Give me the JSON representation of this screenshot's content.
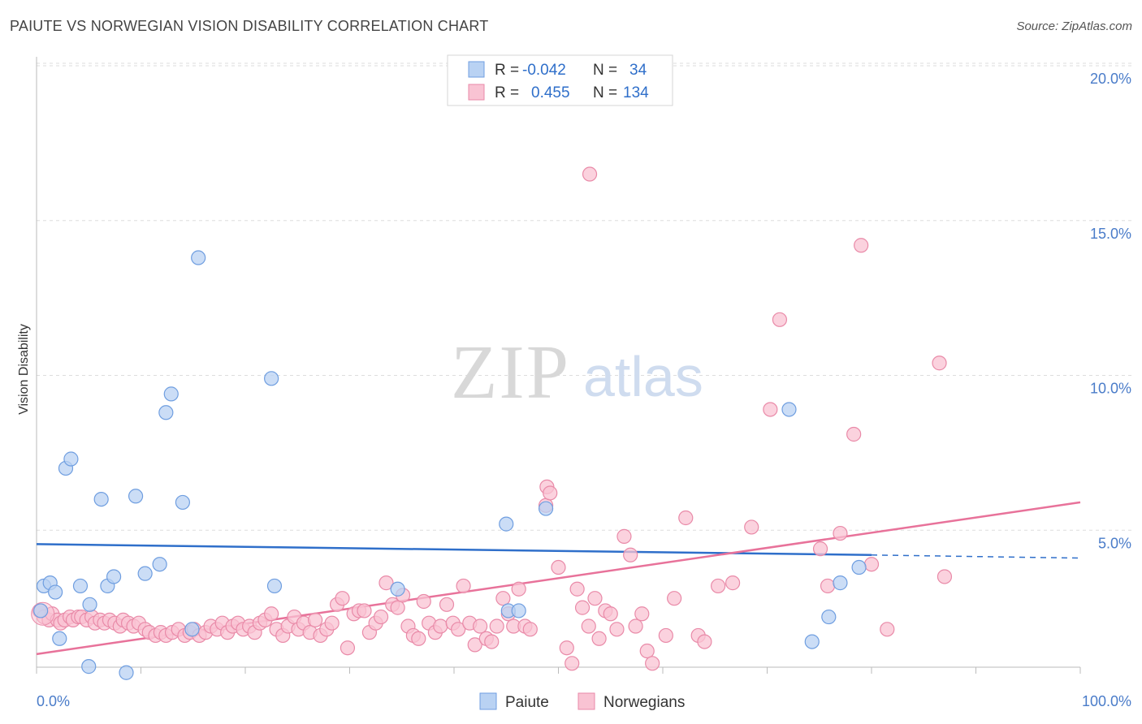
{
  "title": "PAIUTE VS NORWEGIAN VISION DISABILITY CORRELATION CHART",
  "source": "Source: ZipAtlas.com",
  "watermark": {
    "zip": "ZIP",
    "atlas": "atlas"
  },
  "colors": {
    "blue_fill": "#b9d2f3",
    "blue_stroke": "#6f9ee0",
    "blue_line": "#2f6fca",
    "pink_fill": "#f9c3d3",
    "pink_stroke": "#e98aa8",
    "pink_line": "#e8729a",
    "tick_text": "#4a7cc9",
    "grid": "#dddddd"
  },
  "legend": {
    "rows": [
      {
        "r_label": "R =",
        "r_value": "-0.042",
        "n_label": "N =",
        "n_value": "34"
      },
      {
        "r_label": "R =",
        "r_value": "0.455",
        "n_label": "N =",
        "n_value": "134"
      }
    ]
  },
  "bottom_legend": [
    "Paiute",
    "Norwegians"
  ],
  "chart_data": {
    "type": "scatter",
    "title": "PAIUTE VS NORWEGIAN VISION DISABILITY CORRELATION CHART",
    "xlabel": "",
    "ylabel": "Vision Disability",
    "xlim": [
      0,
      100
    ],
    "ylim": [
      0,
      20.5
    ],
    "x_tick_labels": [
      "0.0%",
      "100.0%"
    ],
    "y_ticks": [
      5,
      10,
      15,
      20
    ],
    "y_tick_labels": [
      "5.0%",
      "10.0%",
      "15.0%",
      "20.0%"
    ],
    "grid": true,
    "series": [
      {
        "name": "Paiute",
        "points": [
          [
            0.4,
            2.4
          ],
          [
            0.7,
            3.2
          ],
          [
            1.3,
            3.3
          ],
          [
            1.8,
            3.0
          ],
          [
            2.2,
            1.5
          ],
          [
            2.8,
            7.0
          ],
          [
            3.3,
            7.3
          ],
          [
            4.2,
            3.2
          ],
          [
            5.1,
            2.6
          ],
          [
            5.0,
            0.6
          ],
          [
            6.2,
            6.0
          ],
          [
            6.8,
            3.2
          ],
          [
            7.4,
            3.5
          ],
          [
            8.6,
            0.4
          ],
          [
            9.5,
            6.1
          ],
          [
            10.4,
            3.6
          ],
          [
            11.8,
            3.9
          ],
          [
            12.4,
            8.8
          ],
          [
            12.9,
            9.4
          ],
          [
            14.0,
            5.9
          ],
          [
            14.9,
            1.8
          ],
          [
            15.5,
            13.8
          ],
          [
            22.5,
            9.9
          ],
          [
            22.8,
            3.2
          ],
          [
            34.6,
            3.1
          ],
          [
            45.0,
            5.2
          ],
          [
            45.2,
            2.4
          ],
          [
            46.2,
            2.4
          ],
          [
            48.8,
            5.7
          ],
          [
            72.1,
            8.9
          ],
          [
            74.3,
            1.4
          ],
          [
            75.9,
            2.2
          ],
          [
            77.0,
            3.3
          ],
          [
            78.8,
            3.8
          ]
        ],
        "trend": {
          "x": [
            0,
            80
          ],
          "y": [
            4.55,
            4.2
          ],
          "dashed_to": [
            100,
            4.1
          ]
        }
      },
      {
        "name": "Norwegians",
        "points": [
          [
            0.3,
            2.4
          ],
          [
            0.7,
            2.2
          ],
          [
            1.2,
            2.1
          ],
          [
            1.5,
            2.3
          ],
          [
            2.0,
            2.1
          ],
          [
            2.3,
            2.0
          ],
          [
            2.7,
            2.1
          ],
          [
            3.2,
            2.2
          ],
          [
            3.5,
            2.1
          ],
          [
            4.0,
            2.2
          ],
          [
            4.3,
            2.2
          ],
          [
            4.8,
            2.1
          ],
          [
            5.3,
            2.2
          ],
          [
            5.6,
            2.0
          ],
          [
            6.1,
            2.1
          ],
          [
            6.5,
            2.0
          ],
          [
            7.0,
            2.1
          ],
          [
            7.5,
            2.0
          ],
          [
            8.0,
            1.9
          ],
          [
            8.3,
            2.1
          ],
          [
            8.8,
            2.0
          ],
          [
            9.3,
            1.9
          ],
          [
            9.8,
            2.0
          ],
          [
            10.4,
            1.8
          ],
          [
            10.8,
            1.7
          ],
          [
            11.4,
            1.6
          ],
          [
            11.9,
            1.7
          ],
          [
            12.4,
            1.6
          ],
          [
            13.0,
            1.7
          ],
          [
            13.6,
            1.8
          ],
          [
            14.2,
            1.6
          ],
          [
            14.7,
            1.7
          ],
          [
            15.1,
            1.8
          ],
          [
            15.6,
            1.6
          ],
          [
            16.2,
            1.7
          ],
          [
            16.7,
            1.9
          ],
          [
            17.3,
            1.8
          ],
          [
            17.8,
            2.0
          ],
          [
            18.3,
            1.7
          ],
          [
            18.8,
            1.9
          ],
          [
            19.3,
            2.0
          ],
          [
            19.8,
            1.8
          ],
          [
            20.4,
            1.9
          ],
          [
            20.9,
            1.7
          ],
          [
            21.4,
            2.0
          ],
          [
            21.9,
            2.1
          ],
          [
            22.5,
            2.3
          ],
          [
            23.0,
            1.8
          ],
          [
            23.6,
            1.6
          ],
          [
            24.1,
            1.9
          ],
          [
            24.7,
            2.2
          ],
          [
            25.1,
            1.8
          ],
          [
            25.6,
            2.0
          ],
          [
            26.2,
            1.7
          ],
          [
            26.7,
            2.1
          ],
          [
            27.2,
            1.6
          ],
          [
            27.8,
            1.8
          ],
          [
            28.3,
            2.0
          ],
          [
            28.8,
            2.6
          ],
          [
            29.3,
            2.8
          ],
          [
            29.8,
            1.2
          ],
          [
            30.4,
            2.3
          ],
          [
            30.9,
            2.4
          ],
          [
            31.4,
            2.4
          ],
          [
            31.9,
            1.7
          ],
          [
            32.5,
            2.0
          ],
          [
            33.0,
            2.2
          ],
          [
            33.5,
            3.3
          ],
          [
            34.1,
            2.6
          ],
          [
            34.6,
            2.5
          ],
          [
            35.1,
            2.9
          ],
          [
            35.6,
            1.9
          ],
          [
            36.1,
            1.6
          ],
          [
            36.6,
            1.5
          ],
          [
            37.1,
            2.7
          ],
          [
            37.6,
            2.0
          ],
          [
            38.2,
            1.7
          ],
          [
            38.7,
            1.9
          ],
          [
            39.3,
            2.6
          ],
          [
            39.9,
            2.0
          ],
          [
            40.4,
            1.8
          ],
          [
            40.9,
            3.2
          ],
          [
            41.5,
            2.0
          ],
          [
            42.0,
            1.3
          ],
          [
            42.5,
            1.9
          ],
          [
            43.1,
            1.5
          ],
          [
            43.6,
            1.4
          ],
          [
            44.1,
            1.9
          ],
          [
            44.7,
            2.8
          ],
          [
            45.2,
            2.3
          ],
          [
            45.7,
            1.9
          ],
          [
            46.2,
            3.1
          ],
          [
            46.8,
            1.9
          ],
          [
            47.3,
            1.8
          ],
          [
            48.9,
            6.4
          ],
          [
            48.8,
            5.8
          ],
          [
            49.2,
            6.2
          ],
          [
            50.0,
            3.8
          ],
          [
            50.8,
            1.2
          ],
          [
            51.3,
            0.7
          ],
          [
            51.8,
            3.1
          ],
          [
            52.3,
            2.5
          ],
          [
            52.9,
            1.9
          ],
          [
            53.0,
            16.5
          ],
          [
            53.5,
            2.8
          ],
          [
            53.9,
            1.5
          ],
          [
            54.5,
            2.4
          ],
          [
            55.0,
            2.3
          ],
          [
            55.6,
            1.8
          ],
          [
            56.3,
            4.8
          ],
          [
            56.9,
            4.2
          ],
          [
            57.4,
            1.9
          ],
          [
            58.0,
            2.3
          ],
          [
            58.5,
            1.1
          ],
          [
            59.0,
            0.7
          ],
          [
            60.3,
            1.6
          ],
          [
            61.1,
            2.8
          ],
          [
            62.2,
            5.4
          ],
          [
            63.4,
            1.6
          ],
          [
            64.0,
            1.4
          ],
          [
            65.3,
            3.2
          ],
          [
            66.7,
            3.3
          ],
          [
            68.5,
            5.1
          ],
          [
            70.3,
            8.9
          ],
          [
            71.2,
            11.8
          ],
          [
            75.1,
            4.4
          ],
          [
            77.0,
            4.9
          ],
          [
            78.3,
            8.1
          ],
          [
            79.0,
            14.2
          ],
          [
            80.0,
            3.9
          ],
          [
            81.5,
            1.8
          ],
          [
            86.5,
            10.4
          ],
          [
            87.0,
            3.5
          ],
          [
            75.8,
            3.2
          ]
        ],
        "trend": {
          "x": [
            0,
            100
          ],
          "y": [
            1.0,
            5.9
          ]
        }
      }
    ]
  }
}
